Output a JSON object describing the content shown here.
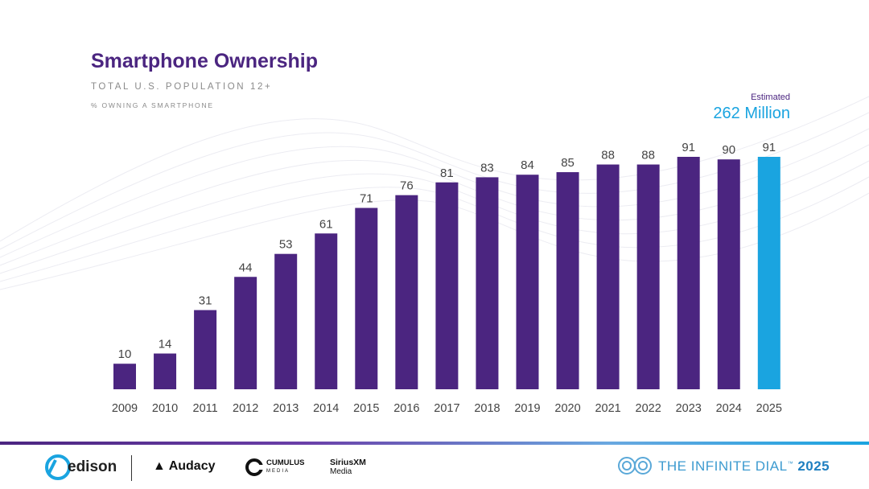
{
  "title_bold": "Smartphone",
  "title_rest": "Ownership",
  "subtitle": "TOTAL U.S. POPULATION 12+",
  "sub_subtitle": "% OWNING A SMARTPHONE",
  "estimate": {
    "label": "Estimated",
    "value": "262 Million"
  },
  "colors": {
    "bar": "#4b2580",
    "highlight": "#1aa4e0",
    "title": "#4b2580",
    "label_text": "#444444"
  },
  "chart_data": {
    "type": "bar",
    "title": "Smartphone Ownership",
    "subtitle": "TOTAL U.S. POPULATION 12+",
    "xlabel": "",
    "ylabel": "% OWNING A SMARTPHONE",
    "categories": [
      "2009",
      "2010",
      "2011",
      "2012",
      "2013",
      "2014",
      "2015",
      "2016",
      "2017",
      "2018",
      "2019",
      "2020",
      "2021",
      "2022",
      "2023",
      "2024",
      "2025"
    ],
    "values": [
      10,
      14,
      31,
      44,
      53,
      61,
      71,
      76,
      81,
      83,
      84,
      85,
      88,
      88,
      91,
      90,
      91
    ],
    "highlight_category": "2025",
    "ylim": [
      0,
      100
    ],
    "grid": false,
    "legend": "none",
    "data_labels": true
  },
  "footer": {
    "logo_edison": "edison",
    "logo_audacy": "Audacy",
    "logo_cumulus": "CUMULUS",
    "logo_cumulus_sub": "MEDIA",
    "logo_sirius": "SiriusXM",
    "logo_sirius_sub": "Media",
    "dial_text": "THE INFINITE DIAL",
    "dial_year": "2025"
  }
}
